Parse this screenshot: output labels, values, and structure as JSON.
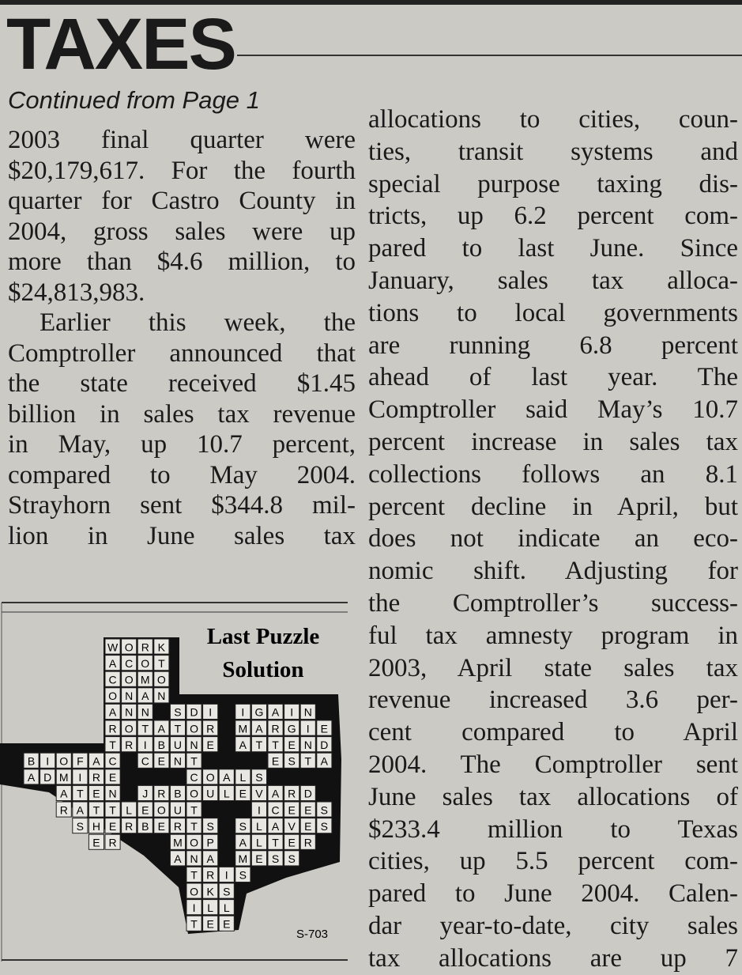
{
  "header": {
    "title": "TAXES",
    "subtitle": "Continued from Page 1"
  },
  "columns": [
    {
      "paragraphs": [
        [
          "2003 final quarter were",
          "$20,179,617. For the fourth",
          "quarter for Castro County in",
          "2004, gross sales were up",
          "more than $4.6 million, to",
          "$24,813,983."
        ],
        [
          "Earlier this week, the",
          "Comptroller announced that",
          "the state received $1.45",
          "billion in sales tax revenue",
          "in May, up 10.7 percent,",
          "compared to May 2004.",
          "Strayhorn sent $344.8 mil-",
          "lion in June sales tax"
        ]
      ]
    },
    {
      "paragraphs": [
        [
          "allocations to cities, coun-",
          "ties, transit systems and",
          "special purpose taxing dis-",
          "tricts, up 6.2 percent com-",
          "pared to last June. Since",
          "January, sales tax alloca-",
          "tions to local governments",
          "are running 6.8 percent",
          "ahead of last year. The",
          "Comptroller said May’s 10.7",
          "percent increase in sales tax",
          "collections follows an 8.1",
          "percent decline in April, but",
          "does not indicate an eco-",
          "nomic shift. Adjusting for",
          "the Comptroller’s success-",
          "ful tax amnesty program in",
          "2003, April state sales tax",
          "revenue increased 3.6 per-",
          "cent compared to April",
          "2004. The Comptroller sent",
          "June sales tax allocations of",
          "$233.4 million to Texas",
          "cities, up 5.5 percent com-",
          "pared to June 2004. Calen-",
          "dar year-to-date, city sales",
          "tax allocations are up 7"
        ]
      ]
    }
  ],
  "puzzle": {
    "title_lines": [
      "Last Puzzle",
      "Solution"
    ],
    "grid": [
      "     WORK",
      "     ACOT",
      "     COMO",
      "     ONAN",
      "     ANN SDI IGAIN",
      "     ROTATOR MARGIE",
      "     TRIBUNE ATTEND",
      "BIOFAC CENT    ESTA",
      "ADMIRE    COALS",
      "  ATEN JRBOULEVARD",
      "  RATTLEOUT   ICEES",
      "   SHERBERTS SLAVES",
      "    ER   MOP ALTER",
      "         ANA MESS",
      "          TRIS",
      "          OKS",
      "          ILL",
      "          TEE"
    ],
    "code": "S-703"
  }
}
